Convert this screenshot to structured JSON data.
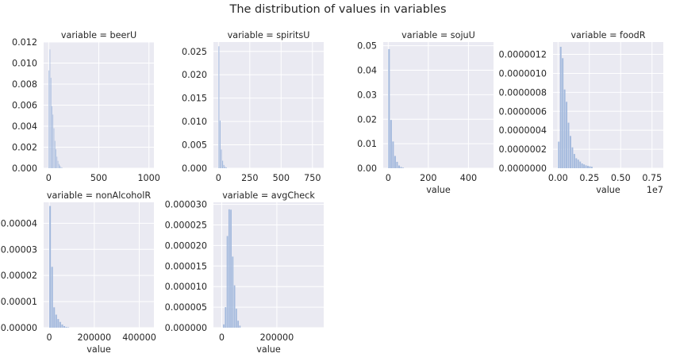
{
  "suptitle": "The distribution of values in variables",
  "colors": {
    "panel_bg": "#eaeaf2",
    "grid": "#ffffff",
    "bar": "#a3b9dd",
    "text": "#262626"
  },
  "chart_data": [
    {
      "type": "bar",
      "title": "variable = beerU",
      "xlabel": "",
      "xlim": [
        -50,
        1050
      ],
      "ylim": [
        0,
        0.012
      ],
      "xticks": [
        0,
        500,
        1000
      ],
      "xtick_labels": [
        "0",
        "500",
        "1000"
      ],
      "yticks": [
        0,
        0.002,
        0.004,
        0.006,
        0.008,
        0.01,
        0.012
      ],
      "ytick_labels": [
        "0.000",
        "0.002",
        "0.004",
        "0.006",
        "0.008",
        "0.010",
        "0.012"
      ],
      "bin_start": 0,
      "bin_width": 10,
      "values": [
        0.0093,
        0.0113,
        0.0086,
        0.0059,
        0.0051,
        0.0038,
        0.0026,
        0.0018,
        0.0011,
        0.0007,
        0.0004,
        0.00025,
        0.00012,
        6e-05
      ]
    },
    {
      "type": "bar",
      "title": "variable = spiritsU",
      "xlabel": "",
      "xlim": [
        -40,
        840
      ],
      "ylim": [
        0,
        0.027
      ],
      "xticks": [
        0,
        250,
        500,
        750
      ],
      "xtick_labels": [
        "0",
        "250",
        "500",
        "750"
      ],
      "yticks": [
        0,
        0.005,
        0.01,
        0.015,
        0.02,
        0.025
      ],
      "ytick_labels": [
        "0.000",
        "0.005",
        "0.010",
        "0.015",
        "0.020",
        "0.025"
      ],
      "bin_start": 0,
      "bin_width": 10,
      "values": [
        0.0261,
        0.0102,
        0.004,
        0.0016,
        0.0007,
        0.0003,
        0.00015
      ]
    },
    {
      "type": "bar",
      "title": "variable = sojuU",
      "xlabel": "value",
      "xlim": [
        -25,
        525
      ],
      "ylim": [
        0,
        0.0515
      ],
      "xticks": [
        0,
        200,
        400
      ],
      "xtick_labels": [
        "0",
        "200",
        "400"
      ],
      "yticks": [
        0,
        0.01,
        0.02,
        0.03,
        0.04,
        0.05
      ],
      "ytick_labels": [
        "0.00",
        "0.01",
        "0.02",
        "0.03",
        "0.04",
        "0.05"
      ],
      "bin_start": 0,
      "bin_width": 10,
      "values": [
        0.0486,
        0.0197,
        0.0109,
        0.005,
        0.0026,
        0.0011,
        0.0005,
        0.0002
      ]
    },
    {
      "type": "bar",
      "title": "variable = foodR",
      "xlabel": "value",
      "offset_label": "1e7",
      "xlim": [
        -0.04,
        0.84
      ],
      "ylim": [
        0,
        1.33e-06
      ],
      "xticks": [
        0,
        0.25,
        0.5,
        0.75
      ],
      "xtick_labels": [
        "0.00",
        "0.25",
        "0.50",
        "0.75"
      ],
      "yticks": [
        0,
        2e-07,
        4e-07,
        6e-07,
        8e-07,
        1e-06,
        1.2e-06
      ],
      "ytick_labels": [
        "0.0000000",
        "0.0000002",
        "0.0000004",
        "0.0000006",
        "0.0000008",
        "0.0000010",
        "0.0000012"
      ],
      "bin_start": 0,
      "bin_width": 0.0155,
      "values": [
        2.8e-07,
        1.28e-06,
        1.16e-06,
        8.3e-07,
        7e-07,
        4.8e-07,
        3.4e-07,
        2.2e-07,
        1.5e-07,
        1.05e-07,
        9e-08,
        7e-08,
        5e-08,
        4e-08,
        3e-08,
        2.5e-08,
        2e-08,
        1.5e-08
      ]
    },
    {
      "type": "bar",
      "title": "variable = nonAlcoholR",
      "xlabel": "value",
      "xlim": [
        -25000,
        465000
      ],
      "ylim": [
        0,
        4.8e-05
      ],
      "xticks": [
        0,
        200000,
        400000
      ],
      "xtick_labels": [
        "0",
        "200000",
        "400000"
      ],
      "yticks": [
        0,
        1e-05,
        2e-05,
        3e-05,
        4e-05
      ],
      "ytick_labels": [
        "0.00000",
        "0.00001",
        "0.00002",
        "0.00003",
        "0.00004"
      ],
      "bin_start": 0,
      "bin_width": 9000,
      "values": [
        4.66e-05,
        2.33e-05,
        7.8e-06,
        5e-06,
        3.3e-06,
        2.2e-06,
        1.2e-06,
        6e-07,
        3e-07,
        1.5e-07
      ]
    },
    {
      "type": "bar",
      "title": "variable = avgCheck",
      "xlabel": "value",
      "xlim": [
        -30000,
        370000
      ],
      "ylim": [
        0,
        3.05e-05
      ],
      "xticks": [
        0,
        200000
      ],
      "xtick_labels": [
        "0",
        "200000"
      ],
      "yticks": [
        0,
        5e-06,
        1e-05,
        1.5e-05,
        2e-05,
        2.5e-05,
        3e-05
      ],
      "ytick_labels": [
        "0.000000",
        "0.000005",
        "0.000010",
        "0.000015",
        "0.000020",
        "0.000025",
        "0.000030"
      ],
      "bin_start": 5000,
      "bin_width": 6500,
      "values": [
        8e-07,
        5e-06,
        2.23e-05,
        2.88e-05,
        2.87e-05,
        1.73e-05,
        1.03e-05,
        4.6e-06,
        1.7e-06,
        5e-07
      ]
    }
  ]
}
